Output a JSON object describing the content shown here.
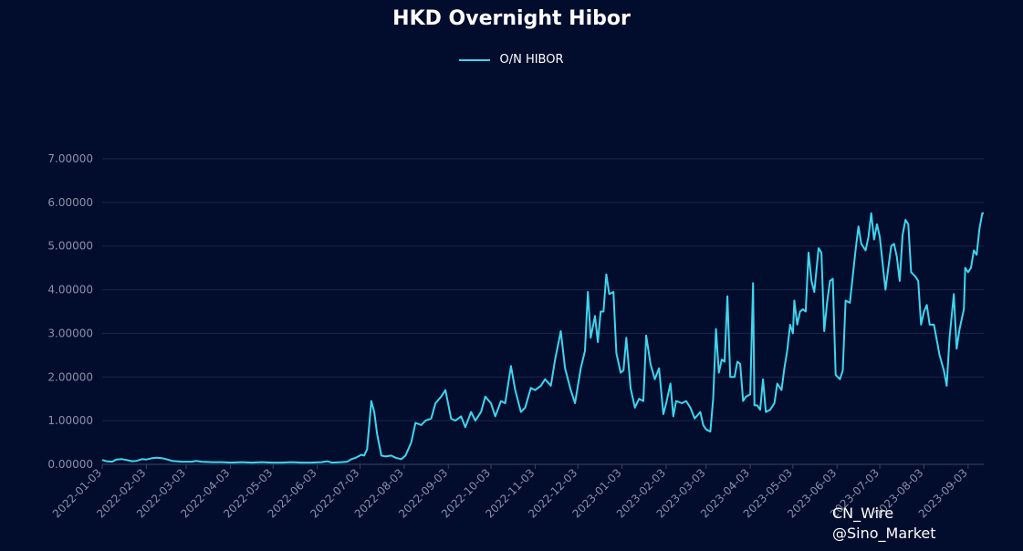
{
  "chart_data": {
    "type": "line",
    "title": "HKD Overnight Hibor",
    "xlabel": "",
    "ylabel": "",
    "ylim": [
      0,
      7
    ],
    "yticks": [
      "0.00000",
      "1.00000",
      "2.00000",
      "3.00000",
      "4.00000",
      "5.00000",
      "6.00000",
      "7.00000"
    ],
    "xticks": [
      "2022-01-03",
      "2022-02-03",
      "2022-03-03",
      "2022-04-03",
      "2022-05-03",
      "2022-06-03",
      "2022-07-03",
      "2022-08-03",
      "2022-09-03",
      "2022-10-03",
      "2022-11-03",
      "2022-12-03",
      "2023-01-03",
      "2023-02-03",
      "2023-03-03",
      "2023-04-03",
      "2023-05-03",
      "2023-06-03",
      "2023-07-03",
      "2023-08-03",
      "2023-09-03"
    ],
    "grid": true,
    "legend_position": "top-center",
    "line_color": "#3ed5ee",
    "series": [
      {
        "name": "O/N HIBOR",
        "points": [
          [
            "2022-01-03",
            0.1
          ],
          [
            "2022-01-06",
            0.07
          ],
          [
            "2022-01-10",
            0.06
          ],
          [
            "2022-01-13",
            0.11
          ],
          [
            "2022-01-17",
            0.12
          ],
          [
            "2022-01-20",
            0.1
          ],
          [
            "2022-01-24",
            0.07
          ],
          [
            "2022-01-27",
            0.08
          ],
          [
            "2022-01-31",
            0.12
          ],
          [
            "2022-02-03",
            0.11
          ],
          [
            "2022-02-07",
            0.14
          ],
          [
            "2022-02-10",
            0.15
          ],
          [
            "2022-02-14",
            0.14
          ],
          [
            "2022-02-17",
            0.12
          ],
          [
            "2022-02-21",
            0.08
          ],
          [
            "2022-02-24",
            0.07
          ],
          [
            "2022-02-28",
            0.06
          ],
          [
            "2022-03-03",
            0.06
          ],
          [
            "2022-03-07",
            0.06
          ],
          [
            "2022-03-10",
            0.08
          ],
          [
            "2022-03-14",
            0.06
          ],
          [
            "2022-03-21",
            0.05
          ],
          [
            "2022-03-28",
            0.05
          ],
          [
            "2022-04-04",
            0.04
          ],
          [
            "2022-04-11",
            0.05
          ],
          [
            "2022-04-18",
            0.04
          ],
          [
            "2022-04-25",
            0.05
          ],
          [
            "2022-05-02",
            0.04
          ],
          [
            "2022-05-09",
            0.04
          ],
          [
            "2022-05-16",
            0.05
          ],
          [
            "2022-05-23",
            0.04
          ],
          [
            "2022-05-30",
            0.04
          ],
          [
            "2022-06-06",
            0.05
          ],
          [
            "2022-06-10",
            0.07
          ],
          [
            "2022-06-13",
            0.04
          ],
          [
            "2022-06-20",
            0.05
          ],
          [
            "2022-06-24",
            0.06
          ],
          [
            "2022-06-27",
            0.12
          ],
          [
            "2022-06-30",
            0.15
          ],
          [
            "2022-07-04",
            0.22
          ],
          [
            "2022-07-06",
            0.2
          ],
          [
            "2022-07-08",
            0.35
          ],
          [
            "2022-07-11",
            1.45
          ],
          [
            "2022-07-13",
            1.2
          ],
          [
            "2022-07-15",
            0.7
          ],
          [
            "2022-07-18",
            0.2
          ],
          [
            "2022-07-21",
            0.18
          ],
          [
            "2022-07-25",
            0.2
          ],
          [
            "2022-07-28",
            0.15
          ],
          [
            "2022-08-01",
            0.12
          ],
          [
            "2022-08-04",
            0.2
          ],
          [
            "2022-08-08",
            0.5
          ],
          [
            "2022-08-11",
            0.95
          ],
          [
            "2022-08-15",
            0.9
          ],
          [
            "2022-08-18",
            1.0
          ],
          [
            "2022-08-22",
            1.05
          ],
          [
            "2022-08-25",
            1.4
          ],
          [
            "2022-08-29",
            1.55
          ],
          [
            "2022-09-01",
            1.7
          ],
          [
            "2022-09-05",
            1.05
          ],
          [
            "2022-09-08",
            1.0
          ],
          [
            "2022-09-12",
            1.1
          ],
          [
            "2022-09-15",
            0.85
          ],
          [
            "2022-09-19",
            1.2
          ],
          [
            "2022-09-22",
            1.0
          ],
          [
            "2022-09-26",
            1.2
          ],
          [
            "2022-09-29",
            1.55
          ],
          [
            "2022-10-03",
            1.4
          ],
          [
            "2022-10-06",
            1.1
          ],
          [
            "2022-10-10",
            1.45
          ],
          [
            "2022-10-13",
            1.4
          ],
          [
            "2022-10-17",
            2.25
          ],
          [
            "2022-10-20",
            1.7
          ],
          [
            "2022-10-24",
            1.2
          ],
          [
            "2022-10-27",
            1.3
          ],
          [
            "2022-10-31",
            1.75
          ],
          [
            "2022-11-03",
            1.7
          ],
          [
            "2022-11-07",
            1.8
          ],
          [
            "2022-11-10",
            1.95
          ],
          [
            "2022-11-14",
            1.8
          ],
          [
            "2022-11-17",
            2.4
          ],
          [
            "2022-11-21",
            3.05
          ],
          [
            "2022-11-24",
            2.2
          ],
          [
            "2022-11-28",
            1.7
          ],
          [
            "2022-12-01",
            1.4
          ],
          [
            "2022-12-05",
            2.2
          ],
          [
            "2022-12-08",
            2.6
          ],
          [
            "2022-12-10",
            3.95
          ],
          [
            "2022-12-12",
            2.9
          ],
          [
            "2022-12-15",
            3.4
          ],
          [
            "2022-12-17",
            2.8
          ],
          [
            "2022-12-19",
            3.5
          ],
          [
            "2022-12-21",
            3.5
          ],
          [
            "2022-12-23",
            4.35
          ],
          [
            "2022-12-25",
            3.9
          ],
          [
            "2022-12-28",
            3.95
          ],
          [
            "2022-12-30",
            2.55
          ],
          [
            "2023-01-02",
            2.1
          ],
          [
            "2023-01-04",
            2.15
          ],
          [
            "2023-01-06",
            2.9
          ],
          [
            "2023-01-09",
            1.75
          ],
          [
            "2023-01-12",
            1.3
          ],
          [
            "2023-01-15",
            1.5
          ],
          [
            "2023-01-18",
            1.45
          ],
          [
            "2023-01-20",
            2.95
          ],
          [
            "2023-01-23",
            2.3
          ],
          [
            "2023-01-26",
            1.95
          ],
          [
            "2023-01-29",
            2.2
          ],
          [
            "2023-02-01",
            1.15
          ],
          [
            "2023-02-03",
            1.4
          ],
          [
            "2023-02-06",
            1.85
          ],
          [
            "2023-02-08",
            1.1
          ],
          [
            "2023-02-10",
            1.45
          ],
          [
            "2023-02-14",
            1.4
          ],
          [
            "2023-02-17",
            1.45
          ],
          [
            "2023-02-20",
            1.3
          ],
          [
            "2023-02-23",
            1.05
          ],
          [
            "2023-02-27",
            1.2
          ],
          [
            "2023-03-01",
            0.9
          ],
          [
            "2023-03-03",
            0.8
          ],
          [
            "2023-03-06",
            0.75
          ],
          [
            "2023-03-08",
            1.5
          ],
          [
            "2023-03-10",
            3.1
          ],
          [
            "2023-03-12",
            2.1
          ],
          [
            "2023-03-14",
            2.4
          ],
          [
            "2023-03-16",
            2.35
          ],
          [
            "2023-03-18",
            3.85
          ],
          [
            "2023-03-20",
            2.0
          ],
          [
            "2023-03-23",
            2.0
          ],
          [
            "2023-03-25",
            2.35
          ],
          [
            "2023-03-27",
            2.3
          ],
          [
            "2023-03-29",
            1.45
          ],
          [
            "2023-03-31",
            1.55
          ],
          [
            "2023-04-03",
            1.6
          ],
          [
            "2023-04-05",
            4.15
          ],
          [
            "2023-04-06",
            1.35
          ],
          [
            "2023-04-08",
            1.35
          ],
          [
            "2023-04-10",
            1.25
          ],
          [
            "2023-04-12",
            1.95
          ],
          [
            "2023-04-14",
            1.2
          ],
          [
            "2023-04-17",
            1.25
          ],
          [
            "2023-04-20",
            1.4
          ],
          [
            "2023-04-22",
            1.85
          ],
          [
            "2023-04-25",
            1.7
          ],
          [
            "2023-04-27",
            2.2
          ],
          [
            "2023-04-29",
            2.6
          ],
          [
            "2023-05-01",
            3.2
          ],
          [
            "2023-05-03",
            3.0
          ],
          [
            "2023-05-04",
            3.75
          ],
          [
            "2023-05-06",
            3.2
          ],
          [
            "2023-05-08",
            3.5
          ],
          [
            "2023-05-10",
            3.55
          ],
          [
            "2023-05-12",
            3.5
          ],
          [
            "2023-05-14",
            4.85
          ],
          [
            "2023-05-16",
            4.2
          ],
          [
            "2023-05-18",
            3.95
          ],
          [
            "2023-05-21",
            4.95
          ],
          [
            "2023-05-23",
            4.85
          ],
          [
            "2023-05-25",
            3.05
          ],
          [
            "2023-05-27",
            3.7
          ],
          [
            "2023-05-29",
            4.2
          ],
          [
            "2023-05-31",
            4.25
          ],
          [
            "2023-06-02",
            2.05
          ],
          [
            "2023-06-05",
            1.95
          ],
          [
            "2023-06-07",
            2.15
          ],
          [
            "2023-06-09",
            3.75
          ],
          [
            "2023-06-12",
            3.7
          ],
          [
            "2023-06-14",
            4.3
          ],
          [
            "2023-06-16",
            4.9
          ],
          [
            "2023-06-18",
            5.45
          ],
          [
            "2023-06-20",
            5.05
          ],
          [
            "2023-06-23",
            4.9
          ],
          [
            "2023-06-25",
            5.2
          ],
          [
            "2023-06-27",
            5.75
          ],
          [
            "2023-06-29",
            5.15
          ],
          [
            "2023-07-01",
            5.5
          ],
          [
            "2023-07-03",
            5.2
          ],
          [
            "2023-07-05",
            4.6
          ],
          [
            "2023-07-07",
            4.0
          ],
          [
            "2023-07-09",
            4.5
          ],
          [
            "2023-07-11",
            5.0
          ],
          [
            "2023-07-13",
            5.05
          ],
          [
            "2023-07-15",
            4.75
          ],
          [
            "2023-07-17",
            4.2
          ],
          [
            "2023-07-19",
            5.25
          ],
          [
            "2023-07-21",
            5.6
          ],
          [
            "2023-07-23",
            5.5
          ],
          [
            "2023-07-25",
            4.4
          ],
          [
            "2023-07-28",
            4.3
          ],
          [
            "2023-07-30",
            4.2
          ],
          [
            "2023-08-01",
            3.2
          ],
          [
            "2023-08-03",
            3.5
          ],
          [
            "2023-08-05",
            3.65
          ],
          [
            "2023-08-07",
            3.2
          ],
          [
            "2023-08-10",
            3.2
          ],
          [
            "2023-08-12",
            2.85
          ],
          [
            "2023-08-14",
            2.5
          ],
          [
            "2023-08-17",
            2.15
          ],
          [
            "2023-08-19",
            1.8
          ],
          [
            "2023-08-21",
            2.9
          ],
          [
            "2023-08-24",
            3.9
          ],
          [
            "2023-08-26",
            2.65
          ],
          [
            "2023-08-28",
            3.1
          ],
          [
            "2023-08-31",
            3.55
          ],
          [
            "2023-09-01",
            4.5
          ],
          [
            "2023-09-03",
            4.4
          ],
          [
            "2023-09-05",
            4.5
          ],
          [
            "2023-09-07",
            4.9
          ],
          [
            "2023-09-09",
            4.8
          ],
          [
            "2023-09-11",
            5.4
          ],
          [
            "2023-09-13",
            5.75
          ],
          [
            "2023-09-14",
            5.75
          ]
        ]
      }
    ]
  },
  "watermark": {
    "line1": "CN_Wire",
    "line2": "@Sino_Market"
  }
}
